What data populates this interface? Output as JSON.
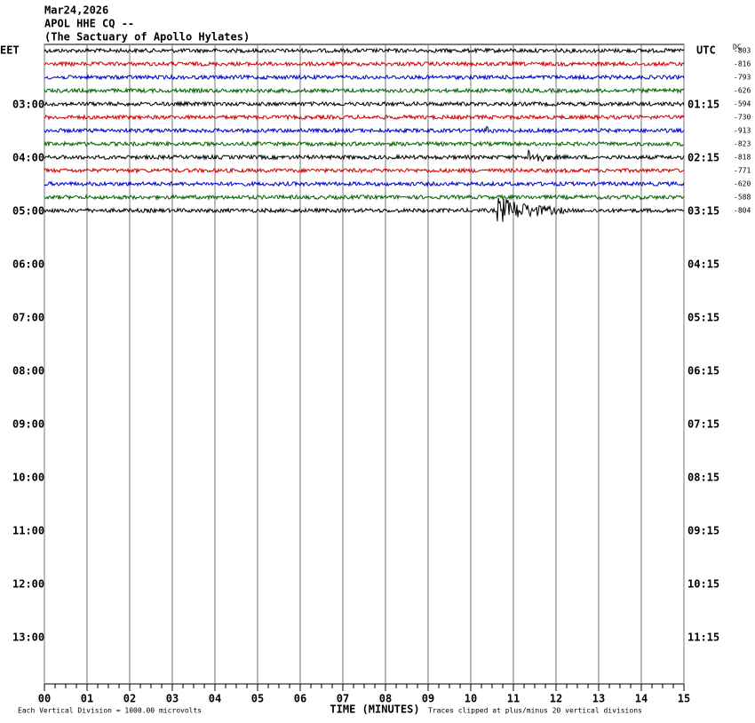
{
  "chart_data": {
    "type": "helicorder",
    "title_lines": [
      "Mar24,2026",
      "APOL HHE CQ --",
      "(The Sactuary of Apollo Hylates)"
    ],
    "left_axis_label": "EET",
    "right_axis_label": "UTC",
    "offset_header": "DC",
    "left_labels": [
      "03:00",
      "04:00",
      "05:00",
      "06:00",
      "07:00",
      "08:00",
      "09:00",
      "10:00",
      "11:00",
      "12:00",
      "13:00"
    ],
    "right_labels": [
      "01:15",
      "02:15",
      "03:15",
      "04:15",
      "05:15",
      "06:15",
      "07:15",
      "08:15",
      "09:15",
      "10:15",
      "11:15"
    ],
    "offsets": [
      -803,
      -816,
      -793,
      -626,
      -594,
      -730,
      -913,
      -823,
      -818,
      -771,
      -620,
      -588,
      -804
    ],
    "trace_colors": [
      "#000000",
      "#d00000",
      "#0000c8",
      "#006400"
    ],
    "xlabel": "TIME (MINUTES)",
    "xlim": [
      0,
      15
    ],
    "xticks": [
      {
        "value": 0,
        "label": "00"
      },
      {
        "value": 1,
        "label": "01"
      },
      {
        "value": 2,
        "label": "02"
      },
      {
        "value": 3,
        "label": "03"
      },
      {
        "value": 4,
        "label": "04"
      },
      {
        "value": 5,
        "label": "05"
      },
      {
        "value": 6,
        "label": "06"
      },
      {
        "value": 7,
        "label": "07"
      },
      {
        "value": 8,
        "label": "08"
      },
      {
        "value": 9,
        "label": "09"
      },
      10,
      11,
      12,
      13,
      14,
      15
    ],
    "footer_left": "Each Vertical Division = 1000.00 microvolts",
    "footer_right": "Traces clipped at plus/minus 20 vertical divisions",
    "grid": true
  }
}
